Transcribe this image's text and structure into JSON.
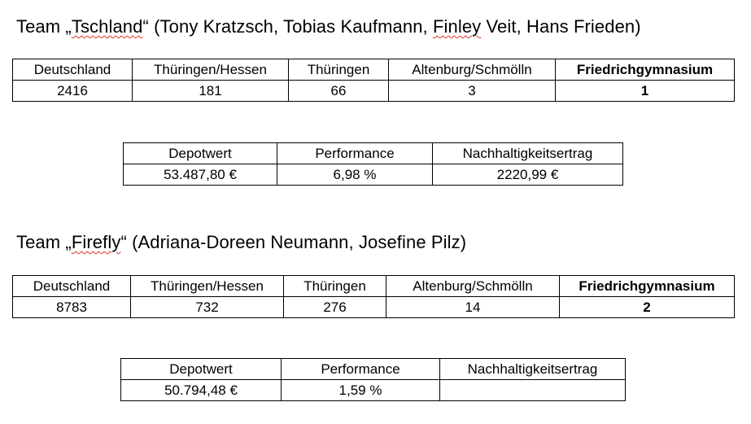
{
  "team1": {
    "heading": {
      "prefix": "Team „",
      "name": "Tschland",
      "middle": "“ (Tony Kratzsch, Tobias Kaufmann, ",
      "member_spell": "Finley",
      "suffix": " Veit, Hans Frieden)"
    },
    "ranking": {
      "headers": [
        "Deutschland",
        "Thüringen/Hessen",
        "Thüringen",
        "Altenburg/Schmölln",
        "Friedrichgymnasium"
      ],
      "values": [
        "2416",
        "181",
        "66",
        "3",
        "1"
      ]
    },
    "depot": {
      "headers": [
        "Depotwert",
        "Performance",
        "Nachhaltigkeitsertrag"
      ],
      "values": [
        "53.487,80 €",
        "6,98 %",
        "2220,99 €"
      ]
    }
  },
  "team2": {
    "heading": {
      "prefix": "Team „",
      "name": "Firefly",
      "middle": "“ (Adriana-Doreen Neumann, Josefine Pilz)"
    },
    "ranking": {
      "headers": [
        "Deutschland",
        "Thüringen/Hessen",
        "Thüringen",
        "Altenburg/Schmölln",
        "Friedrichgymnasium"
      ],
      "values": [
        "8783",
        "732",
        "276",
        "14",
        "2"
      ]
    },
    "depot": {
      "headers": [
        "Depotwert",
        "Performance",
        "Nachhaltigkeitsertrag"
      ],
      "values": [
        "50.794,48 €",
        "1,59 %",
        ""
      ]
    }
  }
}
